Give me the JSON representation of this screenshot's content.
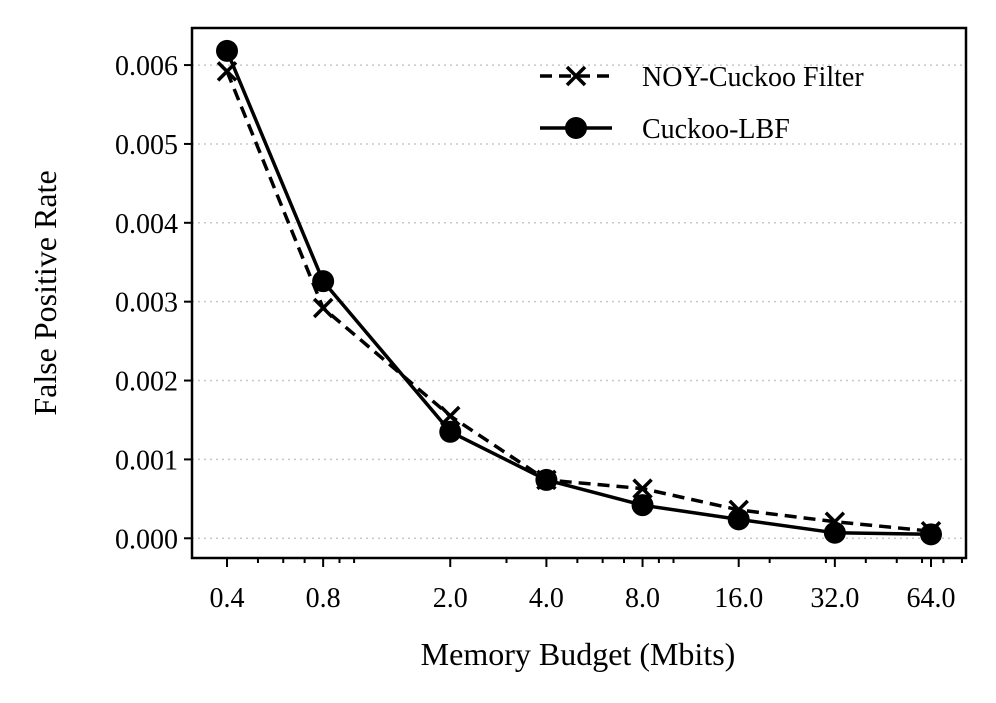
{
  "chart_data": {
    "type": "line",
    "xlabel": "Memory Budget (Mbits)",
    "ylabel": "False Positive Rate",
    "x_scale": "log",
    "x": [
      0.4,
      0.8,
      2.0,
      4.0,
      8.0,
      16.0,
      32.0,
      64.0
    ],
    "x_tick_labels": [
      "0.4",
      "0.8",
      "2.0",
      "4.0",
      "8.0",
      "16.0",
      "32.0",
      "64.0"
    ],
    "y_ticks": [
      0.0,
      0.001,
      0.002,
      0.003,
      0.004,
      0.005,
      0.006
    ],
    "y_tick_labels": [
      "0.000",
      "0.001",
      "0.002",
      "0.003",
      "0.004",
      "0.005",
      "0.006"
    ],
    "ylim": [
      -0.00025,
      0.00647
    ],
    "grid": "horizontal dotted",
    "legend_position": "top-right",
    "series": [
      {
        "name": "NOY-Cuckoo Filter",
        "style": "dashed",
        "marker": "x",
        "color": "#000000",
        "values": [
          0.00592,
          0.00292,
          0.00155,
          0.00074,
          0.00063,
          0.00036,
          0.00021,
          9e-05
        ]
      },
      {
        "name": "Cuckoo-LBF",
        "style": "solid",
        "marker": "circle",
        "color": "#000000",
        "values": [
          0.00618,
          0.00326,
          0.00135,
          0.00074,
          0.00042,
          0.00024,
          7e-05,
          5e-05
        ]
      }
    ]
  }
}
